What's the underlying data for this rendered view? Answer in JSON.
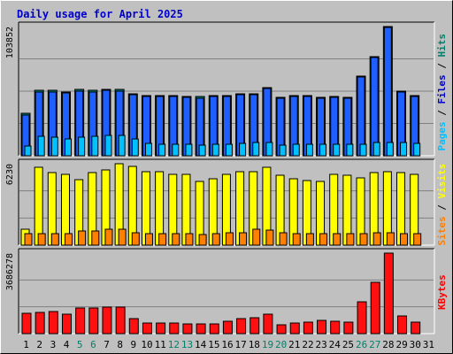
{
  "colors": {
    "background": "#c0c0c0",
    "title": "#0000cc",
    "hits": "#00806b",
    "files": "#0000cc",
    "pages": "#00c0ff",
    "visits": "#ffff00",
    "sites": "#ff8000",
    "kbytes": "#ff0000",
    "weekend_label": "#00806b"
  },
  "chart_data": {
    "type": "bar",
    "title": "Daily usage for April 2025",
    "days": [
      "1",
      "2",
      "3",
      "4",
      "5",
      "6",
      "7",
      "8",
      "9",
      "10",
      "11",
      "12",
      "13",
      "14",
      "15",
      "16",
      "17",
      "18",
      "19",
      "20",
      "21",
      "22",
      "23",
      "24",
      "25",
      "26",
      "27",
      "28",
      "29",
      "30",
      "31"
    ],
    "weekend_days": [
      "5",
      "6",
      "12",
      "13",
      "19",
      "20",
      "26",
      "27"
    ],
    "panels": [
      {
        "name": "hits-files-pages",
        "max_label": "103852",
        "ylim": [
          0,
          103852
        ],
        "ylabel_parts": [
          {
            "text": "Pages",
            "color": "#00c0ff"
          },
          {
            "text": " / ",
            "color": "#000000"
          },
          {
            "text": "Files",
            "color": "#0000cc"
          },
          {
            "text": " / ",
            "color": "#000000"
          },
          {
            "text": "Hits",
            "color": "#00806b"
          }
        ],
        "series": [
          {
            "name": "Hits",
            "color": "#00806b",
            "values": [
              34000,
              52500,
              52500,
              51500,
              53000,
              52500,
              53500,
              53000,
              50000,
              48500,
              48500,
              48500,
              48000,
              47500,
              48500,
              48500,
              50000,
              50000,
              55000,
              47000,
              48500,
              48500,
              47000,
              48000,
              47000,
              64000,
              80000,
              103852,
              52000,
              48500,
              0
            ]
          },
          {
            "name": "Files",
            "color": "#1f5fff",
            "values": [
              33000,
              51500,
              51500,
              50500,
              52000,
              51500,
              52500,
              52000,
              49000,
              47500,
              47500,
              47500,
              47000,
              46500,
              47500,
              47500,
              49000,
              49000,
              54000,
              46000,
              47500,
              47500,
              46000,
              47000,
              46000,
              63000,
              79000,
              103000,
              51000,
              47500,
              0
            ]
          },
          {
            "name": "Pages",
            "color": "#00c0ff",
            "values": [
              8000,
              16000,
              15000,
              13500,
              15000,
              16000,
              16500,
              16500,
              13500,
              10000,
              9500,
              9500,
              9000,
              8500,
              9000,
              9500,
              10000,
              11000,
              11000,
              8800,
              9000,
              9500,
              9000,
              9500,
              9500,
              9500,
              10500,
              11000,
              10800,
              10000,
              0
            ]
          }
        ]
      },
      {
        "name": "visits-sites",
        "max_label": "6230",
        "ylim": [
          0,
          6230
        ],
        "ylabel_parts": [
          {
            "text": "Sites",
            "color": "#ff8000"
          },
          {
            "text": " / ",
            "color": "#000000"
          },
          {
            "text": "Visits",
            "color": "#ffff00"
          }
        ],
        "series": [
          {
            "name": "Visits",
            "color": "#ffff00",
            "values": [
              1200,
              5950,
              5550,
              5450,
              5000,
              5550,
              5750,
              6230,
              6050,
              5650,
              5650,
              5450,
              5450,
              4850,
              5050,
              5450,
              5650,
              5650,
              5950,
              5350,
              5050,
              4950,
              4850,
              5450,
              5350,
              5150,
              5550,
              5650,
              5550,
              5450,
              0
            ]
          },
          {
            "name": "Sites",
            "color": "#ff8000",
            "values": [
              850,
              850,
              850,
              900,
              1050,
              1050,
              1250,
              1200,
              950,
              900,
              850,
              850,
              850,
              800,
              850,
              950,
              950,
              1250,
              1150,
              950,
              850,
              850,
              850,
              850,
              900,
              900,
              950,
              950,
              900,
              900,
              0
            ]
          }
        ]
      },
      {
        "name": "kbytes",
        "max_label": "3686278",
        "ylim": [
          0,
          3686278
        ],
        "ylabel_parts": [
          {
            "text": "KBytes",
            "color": "#ff0000"
          }
        ],
        "series": [
          {
            "name": "KBytes",
            "color": "#ff1010",
            "values": [
              950000,
              990000,
              1000000,
              900000,
              1170000,
              1170000,
              1210000,
              1210000,
              700000,
              480000,
              480000,
              480000,
              460000,
              440000,
              440000,
              570000,
              670000,
              710000,
              900000,
              400000,
              500000,
              540000,
              600000,
              560000,
              540000,
              1440000,
              2350000,
              3686278,
              790000,
              520000,
              0
            ]
          }
        ]
      }
    ]
  }
}
